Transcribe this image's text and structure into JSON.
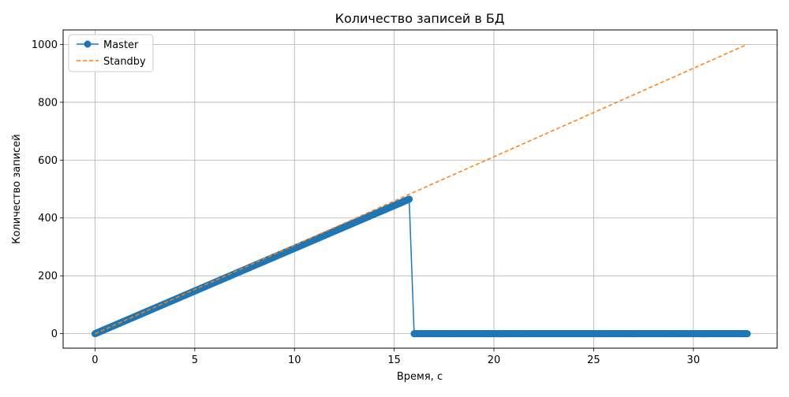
{
  "chart_data": {
    "type": "line",
    "title": "Количество записей в БД",
    "xlabel": "Время, с",
    "ylabel": "Количество записей",
    "xlim": [
      -1.6,
      34.2
    ],
    "ylim": [
      -50,
      1050
    ],
    "xticks": [
      0,
      5,
      10,
      15,
      20,
      25,
      30
    ],
    "yticks": [
      0,
      200,
      400,
      600,
      800,
      1000
    ],
    "grid": true,
    "legend_position": "top-left",
    "series": [
      {
        "name": "Master",
        "color": "#1f77b4",
        "style": "solid",
        "marker": "circle",
        "segments": [
          {
            "x_start": 0,
            "x_end": 15.75,
            "y_start": 0,
            "y_end": 465,
            "step": 0.0315
          },
          {
            "x_start": 16.0,
            "x_end": 32.7,
            "y_start": 0,
            "y_end": 0,
            "step": 0.0315
          }
        ],
        "points": [
          [
            0,
            0
          ],
          [
            15.75,
            465
          ],
          [
            16.0,
            0
          ],
          [
            32.7,
            0
          ]
        ]
      },
      {
        "name": "Standby",
        "color": "#ff7f0e",
        "style": "dashed",
        "marker": "none",
        "points": [
          [
            0,
            0
          ],
          [
            32.7,
            1000
          ]
        ]
      }
    ]
  }
}
